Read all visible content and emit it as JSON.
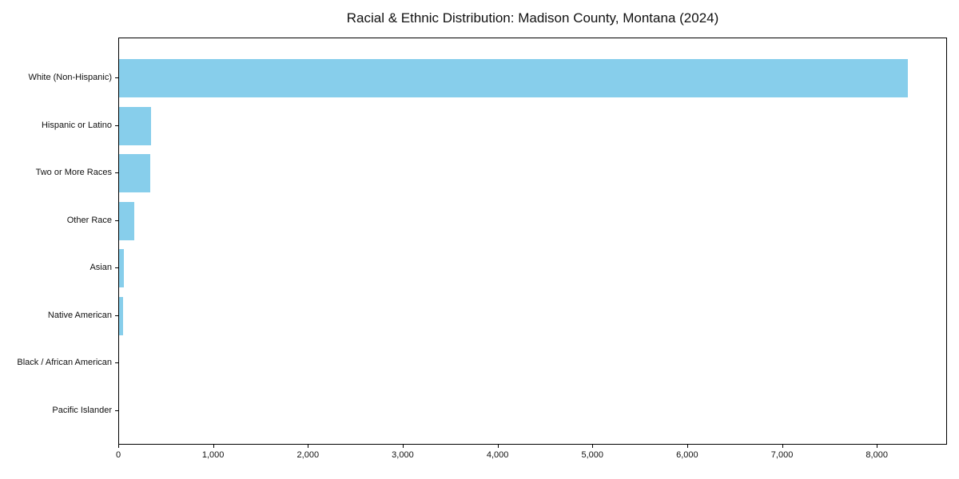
{
  "page": {
    "background": "#ffffff"
  },
  "chart_data": {
    "type": "bar",
    "orientation": "horizontal",
    "title": "Racial & Ethnic Distribution: Madison County, Montana (2024)",
    "categories": [
      "White (Non-Hispanic)",
      "Hispanic or Latino",
      "Two or More Races",
      "Other Race",
      "Asian",
      "Native American",
      "Black / African American",
      "Pacific Islander"
    ],
    "values": [
      8320,
      335,
      328,
      158,
      48,
      38,
      0,
      0
    ],
    "xlabel": "",
    "ylabel": "",
    "xlim": [
      0,
      8740
    ],
    "xticks": [
      0,
      1000,
      2000,
      3000,
      4000,
      5000,
      6000,
      7000,
      8000
    ],
    "xtick_labels": [
      "0",
      "1,000",
      "2,000",
      "3,000",
      "4,000",
      "5,000",
      "6,000",
      "7,000",
      "8,000"
    ],
    "bar_color": "#87CEEB",
    "axis_color": "#000000",
    "text_color": "#111111",
    "grid": false,
    "legend": false
  }
}
